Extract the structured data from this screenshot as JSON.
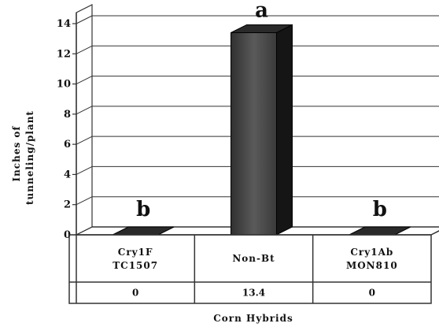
{
  "chart_data": {
    "type": "bar",
    "categories": [
      [
        "Cry1F",
        "TC1507"
      ],
      [
        "Non-Bt"
      ],
      [
        "Cry1Ab",
        "MON810"
      ]
    ],
    "values": [
      0,
      13.4,
      0
    ],
    "value_labels": [
      "0",
      "13.4",
      "0"
    ],
    "significance_letters": [
      "b",
      "a",
      "b"
    ],
    "ylabel": [
      "Inches of",
      "tunneling/plant"
    ],
    "xlabel": "Corn Hybrids",
    "yticks": [
      "0",
      "2",
      "4",
      "6",
      "8",
      "10",
      "12",
      "14"
    ],
    "ylim": [
      0,
      14
    ],
    "grid": true,
    "style": "3d-bar-with-data-table",
    "colors": {
      "bar_front": "#3f3f3f",
      "bar_side": "#151515",
      "bar_top": "#2a2a2a",
      "grid": "#333333",
      "text": "#111111"
    }
  }
}
